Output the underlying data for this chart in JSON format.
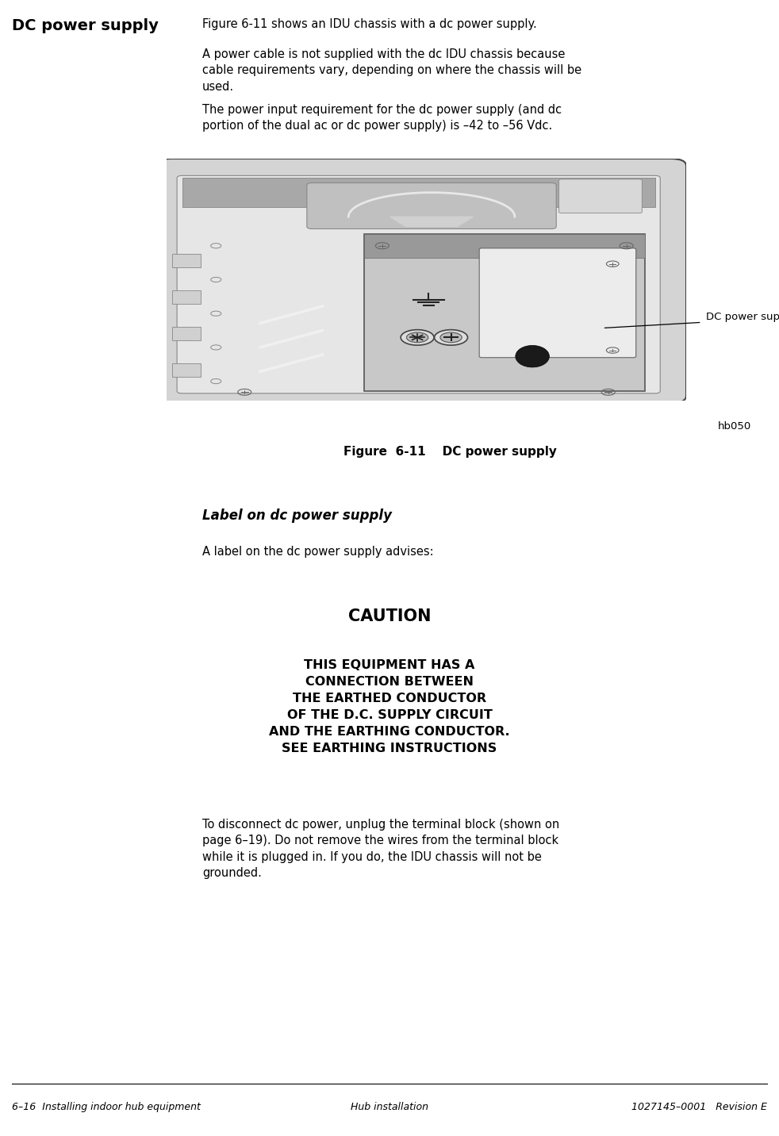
{
  "page_bg": "#ffffff",
  "header_bold_text": "DC power supply",
  "para1": "Figure 6-11 shows an IDU chassis with a dc power supply.",
  "para2": "A power cable is not supplied with the dc IDU chassis because\ncable requirements vary, depending on where the chassis will be\nused.",
  "para3": "The power input requirement for the dc power supply (and dc\nportion of the dual ac or dc power supply) is –42 to –56 Vdc.",
  "fig_caption": "Figure  6-11    DC power supply",
  "label_dc_power_supply": "DC power supply",
  "label_hb050": "hb050",
  "section_label": "Label on dc power supply",
  "section_text": "A label on the dc power supply advises:",
  "caution_title": "CAUTION",
  "caution_body": "THIS EQUIPMENT HAS A\nCONNECTION BETWEEN\nTHE EARTHED CONDUCTOR\nOF THE D.C. SUPPLY CIRCUIT\nAND THE EARTHING CONDUCTOR.\nSEE EARTHING INSTRUCTIONS",
  "final_para": "To disconnect dc power, unplug the terminal block (shown on\npage 6–19). Do not remove the wires from the terminal block\nwhile it is plugged in. If you do, the IDU chassis will not be\ngrounded.",
  "footer_left": "6–16  Installing indoor hub equipment",
  "footer_center": "Hub installation",
  "footer_right": "1027145–0001   Revision E"
}
